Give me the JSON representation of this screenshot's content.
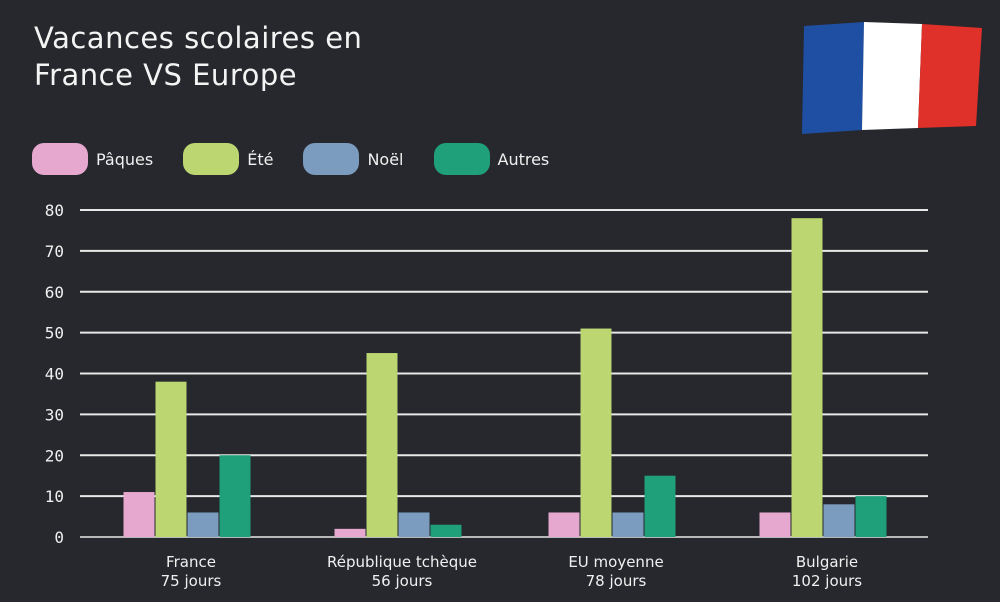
{
  "colors": {
    "background": "#26282d",
    "paques": "#e7a8cf",
    "ete": "#bcd672",
    "noel": "#7b9bbf",
    "autres": "#1fa07a",
    "flag_blue": "#1f4fa3",
    "flag_white": "#ffffff",
    "flag_red": "#e0302a"
  },
  "flag_icon": "french-flag-icon",
  "chart_data": {
    "type": "bar",
    "title": "Vacances scolaires en\nFrance VS Europe",
    "xlabel": "",
    "ylabel": "",
    "ylim": [
      0,
      80
    ],
    "yticks": [
      0,
      10,
      20,
      30,
      40,
      50,
      60,
      70,
      80
    ],
    "grid": true,
    "legend_position": "top-left",
    "categories": [
      {
        "name": "France",
        "sub": "75 jours"
      },
      {
        "name": "République tchèque",
        "sub": "56 jours"
      },
      {
        "name": "EU moyenne",
        "sub": "78 jours"
      },
      {
        "name": "Bulgarie",
        "sub": "102 jours"
      }
    ],
    "series": [
      {
        "name": "Pâques",
        "color": "#e7a8cf",
        "values": [
          11,
          2,
          6,
          6
        ]
      },
      {
        "name": "Été",
        "color": "#bcd672",
        "values": [
          38,
          45,
          51,
          78
        ]
      },
      {
        "name": "Noël",
        "color": "#7b9bbf",
        "values": [
          6,
          6,
          6,
          8
        ]
      },
      {
        "name": "Autres",
        "color": "#1fa07a",
        "values": [
          20,
          3,
          15,
          10
        ]
      }
    ]
  }
}
